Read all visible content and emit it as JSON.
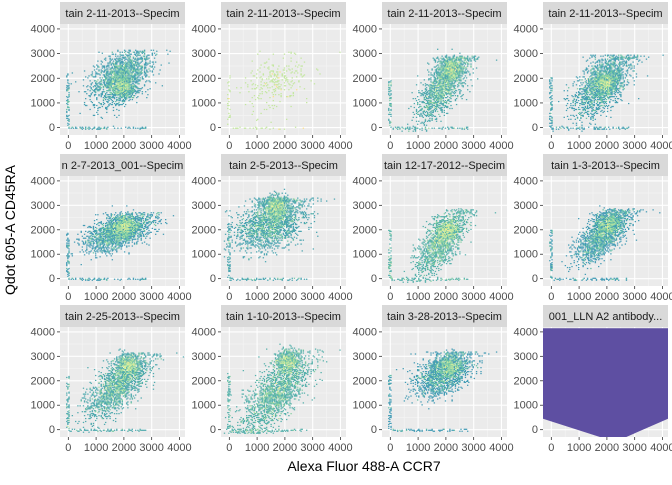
{
  "chart_data": {
    "type": "heatmap",
    "subtype": "faceted 2D density (hexbin-like) scatter",
    "xlabel": "Alexa Fluor 488-A CCR7",
    "ylabel": "Qdot 605-A CD45RA",
    "xlim": [
      -300,
      4200
    ],
    "ylim": [
      -300,
      4200
    ],
    "x_ticks": [
      0,
      1000,
      2000,
      3000,
      4000
    ],
    "y_ticks": [
      0,
      1000,
      2000,
      3000,
      4000
    ],
    "x_tick_labels": [
      "0",
      "1000",
      "2000",
      "3000",
      "4000"
    ],
    "y_tick_labels": [
      "0",
      "1000",
      "2000",
      "3000",
      "4000"
    ],
    "grid": true,
    "color_scale": [
      "#5e4fa2",
      "#3288bd",
      "#66c2a5",
      "#abdda4",
      "#e6f598",
      "#fee08b"
    ],
    "panel_background": "#ebebeb",
    "strip_background": "#d9d9d9",
    "facets": [
      {
        "strip": "tain 2-11-2013--Specim",
        "cx": 1900,
        "cy": 2050,
        "sx": 520,
        "sy": 520,
        "rho": 0.45,
        "n": 1800,
        "ymax": 3150,
        "peak": [
          1950,
          1600
        ]
      },
      {
        "strip": "tain 2-11-2013--Specim",
        "cx": 1700,
        "cy": 1900,
        "sx": 600,
        "sy": 600,
        "rho": 0.4,
        "n": 240,
        "ymax": 3100,
        "peak": [
          1700,
          1900
        ],
        "sparse": true
      },
      {
        "strip": "tain 2-11-2013--Specim",
        "cx": 1900,
        "cy": 1700,
        "sx": 450,
        "sy": 700,
        "rho": 0.7,
        "n": 1600,
        "ymax": 2900,
        "peak": [
          2150,
          2400
        ]
      },
      {
        "strip": "tain 2-11-2013--Specim",
        "cx": 1800,
        "cy": 1750,
        "sx": 520,
        "sy": 650,
        "rho": 0.6,
        "n": 1800,
        "ymax": 2950,
        "peak": [
          1950,
          1800
        ]
      },
      {
        "strip": "n 2-7-2013_001--Specim",
        "cx": 1800,
        "cy": 1900,
        "sx": 600,
        "sy": 380,
        "rho": 0.55,
        "n": 2000,
        "ymax": 2700,
        "peak": [
          2000,
          2200
        ]
      },
      {
        "strip": "tain 2-5-2013--Specim",
        "cx": 1500,
        "cy": 2300,
        "sx": 600,
        "sy": 550,
        "rho": 0.35,
        "n": 2000,
        "ymax": 3300,
        "peak": [
          1700,
          2950
        ]
      },
      {
        "strip": "tain 12-17-2012--Specim",
        "cx": 1850,
        "cy": 1500,
        "sx": 450,
        "sy": 650,
        "rho": 0.7,
        "n": 1500,
        "ymax": 2850,
        "peak": [
          2050,
          2000
        ]
      },
      {
        "strip": "tain 1-3-2013--Specim",
        "cx": 1850,
        "cy": 1800,
        "sx": 480,
        "sy": 560,
        "rho": 0.7,
        "n": 1700,
        "ymax": 2850,
        "peak": [
          2050,
          2300
        ]
      },
      {
        "strip": "tain 2-25-2013--Specim",
        "cx": 1800,
        "cy": 1800,
        "sx": 550,
        "sy": 650,
        "rho": 0.7,
        "n": 1800,
        "ymax": 3150,
        "peak": [
          2150,
          2650
        ]
      },
      {
        "strip": "tain 1-10-2013--Specim",
        "cx": 1700,
        "cy": 1500,
        "sx": 600,
        "sy": 800,
        "rho": 0.7,
        "n": 1800,
        "ymax": 3300,
        "peak": [
          2100,
          2800
        ]
      },
      {
        "strip": "tain 3-28-2013--Specim",
        "cx": 1900,
        "cy": 2300,
        "sx": 500,
        "sy": 450,
        "rho": 0.45,
        "n": 1600,
        "ymax": 3200,
        "peak": [
          2150,
          2650
        ]
      },
      {
        "strip": "001_LLN A2 antibody...",
        "solid": true,
        "fill_color": "#5e4fa2",
        "top": 4150,
        "outline": [
          [
            -300,
            450
          ],
          [
            1750,
            -300
          ],
          [
            2700,
            -300
          ],
          [
            4200,
            450
          ]
        ]
      }
    ]
  }
}
